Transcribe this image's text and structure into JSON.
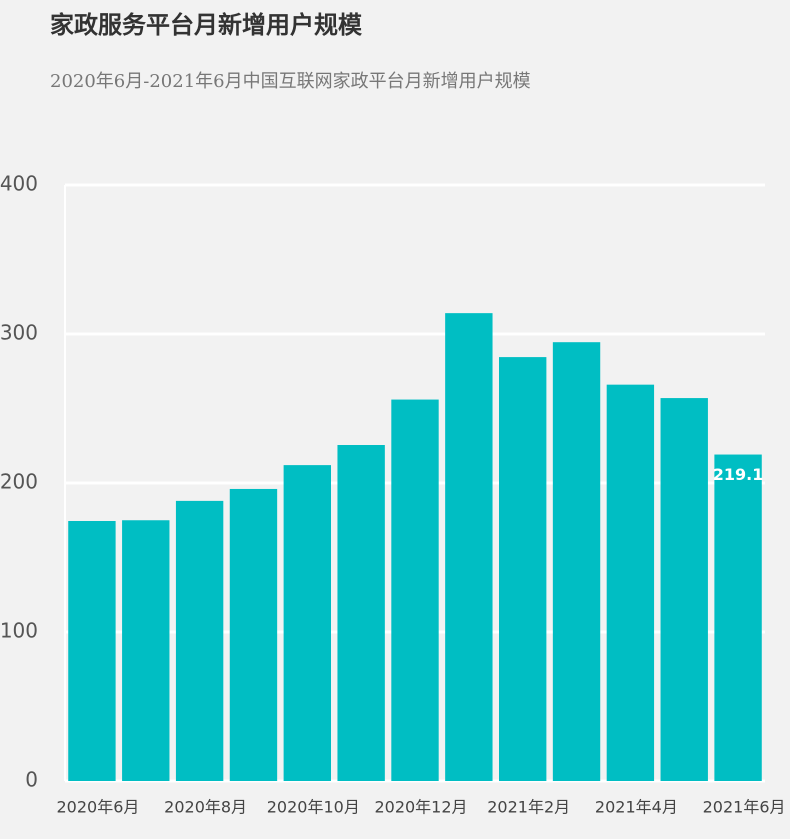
{
  "chart_data": {
    "type": "bar",
    "title": "家政服务平台月新增用户规模",
    "subtitle": "2020年6月-2021年6月中国互联网家政平台月新增用户规模",
    "categories": [
      "2020年6月",
      null,
      "2020年8月",
      null,
      "2020年10月",
      null,
      "2020年12月",
      null,
      "2021年2月",
      null,
      "2021年4月",
      null,
      "2021年6月"
    ],
    "values": [
      174.5,
      175,
      188,
      196,
      212,
      225.5,
      256,
      314,
      284.5,
      294.5,
      266,
      257,
      219.1
    ],
    "value_labels": [
      null,
      null,
      null,
      null,
      null,
      null,
      null,
      null,
      null,
      null,
      null,
      null,
      "219.1"
    ],
    "color": "#00bec3",
    "ylim": [
      0,
      400
    ],
    "yticks": [
      0,
      100,
      200,
      300,
      400
    ],
    "grid": true
  }
}
